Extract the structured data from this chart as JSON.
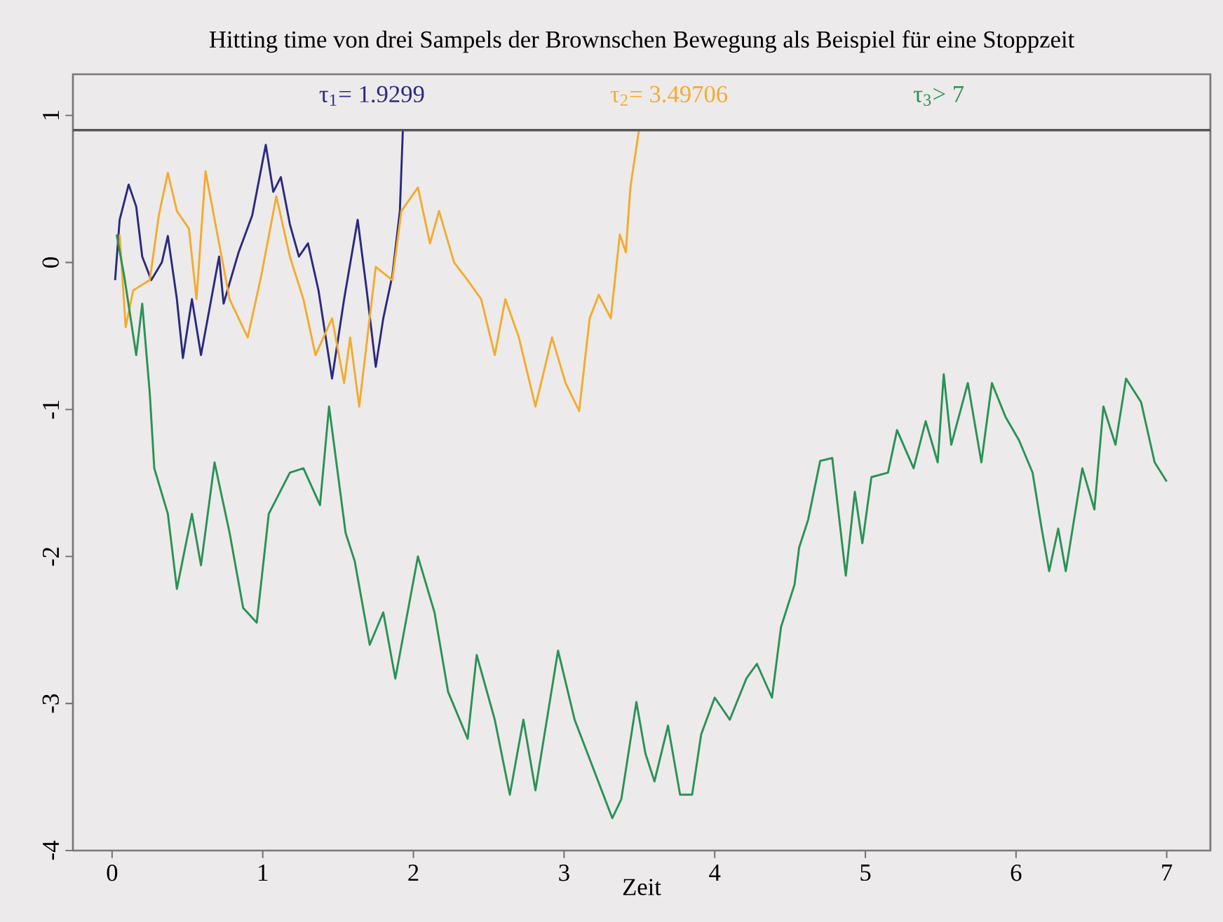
{
  "chart_data": {
    "type": "line",
    "title": "Hitting time von drei Sampels der Brownschen Bewegung als Beispiel für eine Stoppzeit",
    "xlabel": "Zeit",
    "xlim": [
      -0.26,
      7.29
    ],
    "ylim": [
      -4,
      1.28
    ],
    "xticks": [
      0,
      1,
      2,
      3,
      4,
      5,
      6,
      7
    ],
    "yticks": [
      -4,
      -3,
      -2,
      -1,
      0,
      1
    ],
    "legend": "top",
    "grid": false,
    "marker": "none",
    "line_style": "solid",
    "ref_lines": [
      {
        "axis": "y",
        "value": 0.9,
        "color": "#555555"
      }
    ],
    "series": [
      {
        "name": "τ$_{1}$= 1.9299",
        "color": "#2b2a7e",
        "x": [
          0.02,
          0.05,
          0.11,
          0.16,
          0.2,
          0.26,
          0.33,
          0.37,
          0.43,
          0.47,
          0.53,
          0.59,
          0.71,
          0.74,
          0.84,
          0.93,
          1.02,
          1.07,
          1.12,
          1.18,
          1.24,
          1.3,
          1.37,
          1.46,
          1.54,
          1.63,
          1.69,
          1.75,
          1.8,
          1.86,
          1.91,
          1.9299
        ],
        "values": [
          -0.12,
          0.29,
          0.53,
          0.38,
          0.04,
          -0.12,
          0.0,
          0.18,
          -0.25,
          -0.65,
          -0.25,
          -0.63,
          0.04,
          -0.28,
          0.07,
          0.32,
          0.8,
          0.48,
          0.58,
          0.26,
          0.04,
          0.13,
          -0.19,
          -0.79,
          -0.25,
          0.29,
          -0.19,
          -0.71,
          -0.38,
          -0.09,
          0.35,
          0.9
        ]
      },
      {
        "name": "τ$_{2}$= 3.49706",
        "color": "#f2ac2e",
        "x": [
          0.05,
          0.09,
          0.14,
          0.25,
          0.31,
          0.37,
          0.43,
          0.51,
          0.56,
          0.62,
          0.71,
          0.78,
          0.9,
          0.99,
          1.09,
          1.18,
          1.27,
          1.35,
          1.46,
          1.54,
          1.58,
          1.64,
          1.75,
          1.86,
          1.92,
          2.03,
          2.11,
          2.17,
          2.27,
          2.36,
          2.45,
          2.54,
          2.61,
          2.7,
          2.81,
          2.92,
          3.01,
          3.1,
          3.17,
          3.23,
          3.31,
          3.37,
          3.41,
          3.44,
          3.49706
        ],
        "values": [
          0.19,
          -0.44,
          -0.19,
          -0.12,
          0.32,
          0.61,
          0.35,
          0.23,
          -0.25,
          0.62,
          0.13,
          -0.25,
          -0.51,
          -0.09,
          0.45,
          0.04,
          -0.25,
          -0.63,
          -0.38,
          -0.82,
          -0.51,
          -0.98,
          -0.03,
          -0.12,
          0.35,
          0.51,
          0.13,
          0.35,
          0.0,
          -0.12,
          -0.25,
          -0.63,
          -0.25,
          -0.51,
          -0.98,
          -0.51,
          -0.82,
          -1.01,
          -0.38,
          -0.22,
          -0.38,
          0.19,
          0.07,
          0.51,
          0.9
        ]
      },
      {
        "name": "τ$_{3}$> 7",
        "color": "#2a9255",
        "x": [
          0.03,
          0.08,
          0.16,
          0.2,
          0.25,
          0.28,
          0.37,
          0.43,
          0.53,
          0.59,
          0.68,
          0.78,
          0.87,
          0.96,
          1.04,
          1.18,
          1.27,
          1.38,
          1.44,
          1.55,
          1.61,
          1.71,
          1.8,
          1.88,
          2.03,
          2.14,
          2.23,
          2.36,
          2.42,
          2.54,
          2.64,
          2.73,
          2.81,
          2.96,
          3.07,
          3.32,
          3.38,
          3.48,
          3.54,
          3.6,
          3.69,
          3.77,
          3.85,
          3.91,
          4.0,
          4.1,
          4.21,
          4.28,
          4.38,
          4.44,
          4.53,
          4.56,
          4.62,
          4.7,
          4.78,
          4.87,
          4.93,
          4.98,
          5.04,
          5.15,
          5.21,
          5.32,
          5.4,
          5.48,
          5.52,
          5.57,
          5.68,
          5.77,
          5.84,
          5.93,
          6.02,
          6.11,
          6.17,
          6.22,
          6.28,
          6.33,
          6.44,
          6.52,
          6.58,
          6.66,
          6.73,
          6.83,
          6.92,
          7.0
        ],
        "values": [
          0.19,
          -0.09,
          -0.63,
          -0.28,
          -0.89,
          -1.4,
          -1.71,
          -2.22,
          -1.71,
          -2.06,
          -1.36,
          -1.84,
          -2.35,
          -2.45,
          -1.71,
          -1.43,
          -1.4,
          -1.65,
          -0.98,
          -1.84,
          -2.03,
          -2.6,
          -2.38,
          -2.83,
          -2.0,
          -2.38,
          -2.92,
          -3.24,
          -2.67,
          -3.11,
          -3.62,
          -3.11,
          -3.59,
          -2.64,
          -3.11,
          -3.78,
          -3.65,
          -2.99,
          -3.34,
          -3.53,
          -3.15,
          -3.62,
          -3.62,
          -3.21,
          -2.96,
          -3.11,
          -2.83,
          -2.73,
          -2.96,
          -2.48,
          -2.19,
          -1.94,
          -1.75,
          -1.35,
          -1.33,
          -2.13,
          -1.56,
          -1.91,
          -1.46,
          -1.43,
          -1.14,
          -1.4,
          -1.08,
          -1.36,
          -0.76,
          -1.24,
          -0.82,
          -1.36,
          -0.82,
          -1.05,
          -1.21,
          -1.43,
          -1.81,
          -2.1,
          -1.81,
          -2.1,
          -1.4,
          -1.68,
          -0.98,
          -1.24,
          -0.79,
          -0.95,
          -1.36,
          -1.49
        ]
      }
    ]
  }
}
